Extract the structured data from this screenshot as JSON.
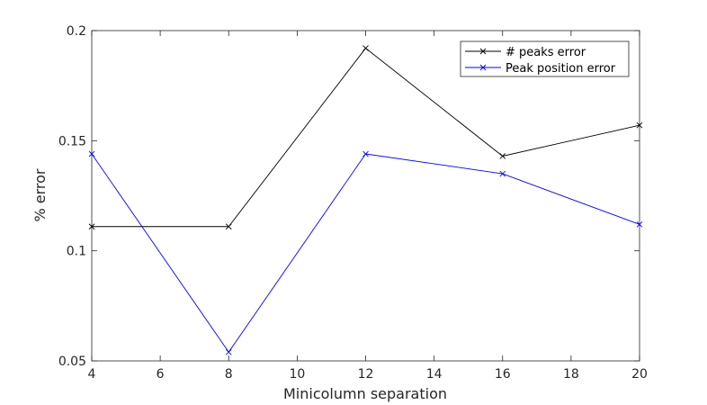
{
  "chart_data": {
    "type": "line",
    "xlabel": "Minicolumn separation",
    "ylabel": "% error",
    "xlim": [
      4,
      20
    ],
    "ylim": [
      0.05,
      0.2
    ],
    "xticks": [
      4,
      6,
      8,
      10,
      12,
      14,
      16,
      18,
      20
    ],
    "yticks": [
      0.05,
      0.1,
      0.15,
      0.2
    ],
    "ytick_labels": [
      "0.05",
      "0.1",
      "0.15",
      "0.2"
    ],
    "grid": false,
    "legend_position": "top-right",
    "x": [
      4,
      8,
      12,
      16,
      20
    ],
    "series": [
      {
        "name": "# peaks error",
        "color": "#000000",
        "marker": "x",
        "values": [
          0.111,
          0.111,
          0.192,
          0.143,
          0.157
        ]
      },
      {
        "name": "Peak position error",
        "color": "#0000ff",
        "marker": "x",
        "values": [
          0.144,
          0.054,
          0.144,
          0.135,
          0.112
        ]
      }
    ]
  }
}
